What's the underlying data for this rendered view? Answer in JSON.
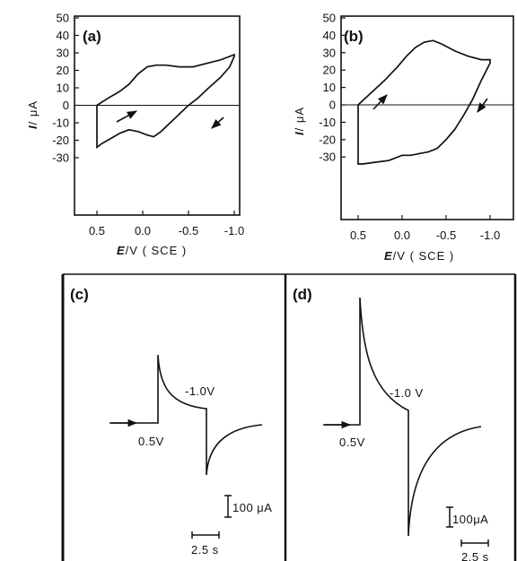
{
  "chart_data": [
    {
      "type": "line",
      "panel_label": "(a)",
      "xlabel": {
        "symbol": "E",
        "unit": "/V  ( SCE )"
      },
      "ylabel": {
        "symbol": "I",
        "unit": "/ μA"
      },
      "xlim": [
        0.5,
        -1.0
      ],
      "ylim": [
        -30,
        50
      ],
      "x_ticks": [
        "0.5",
        "0.0",
        "-0.5",
        "-1.0"
      ],
      "x_tick_values": [
        0.5,
        0.0,
        -0.5,
        -1.0
      ],
      "y_ticks": [
        "50",
        "40",
        "30",
        "20",
        "10",
        "0",
        "-10",
        "-20",
        "-30"
      ],
      "y_tick_values": [
        50,
        40,
        30,
        20,
        10,
        0,
        -10,
        -20,
        -30
      ],
      "series": [
        {
          "x": [
            0.5,
            0.38,
            0.25,
            0.15,
            0.05,
            -0.05,
            -0.15,
            -0.25,
            -0.4,
            -0.55,
            -0.7,
            -0.85,
            -0.95,
            -1.0,
            -1.0,
            -0.95,
            -0.85,
            -0.7,
            -0.6,
            -0.5,
            -0.4,
            -0.3,
            -0.2,
            -0.12,
            -0.05,
            0.05,
            0.15,
            0.25,
            0.35,
            0.45,
            0.5,
            0.5
          ],
          "y": [
            0,
            4,
            8,
            12,
            18,
            22,
            23,
            23,
            22,
            22,
            24,
            26,
            28,
            29,
            28,
            22,
            16,
            9,
            4,
            0,
            -5,
            -10,
            -15,
            -18,
            -17,
            -15,
            -14,
            -16,
            -19,
            -22,
            -24,
            0
          ]
        }
      ]
    },
    {
      "type": "line",
      "panel_label": "(b)",
      "xlabel": {
        "symbol": "E",
        "unit": "/V  ( SCE )"
      },
      "ylabel": {
        "symbol": "I",
        "unit": "/ μA"
      },
      "xlim": [
        0.5,
        -1.0
      ],
      "ylim": [
        -35,
        50
      ],
      "x_ticks": [
        "0.5",
        "0.0",
        "-0.5",
        "-1.0"
      ],
      "x_tick_values": [
        0.5,
        0.0,
        -0.5,
        -1.0
      ],
      "y_ticks": [
        "50",
        "40",
        "30",
        "20",
        "10",
        "0",
        "-10",
        "-20",
        "-30"
      ],
      "y_tick_values": [
        50,
        40,
        30,
        20,
        10,
        0,
        -10,
        -20,
        -30
      ],
      "series": [
        {
          "x": [
            0.5,
            0.35,
            0.2,
            0.05,
            -0.05,
            -0.15,
            -0.25,
            -0.35,
            -0.45,
            -0.6,
            -0.75,
            -0.9,
            -1.0,
            -1.0,
            -0.9,
            -0.8,
            -0.7,
            -0.6,
            -0.5,
            -0.4,
            -0.3,
            -0.2,
            -0.1,
            0.0,
            0.15,
            0.3,
            0.45,
            0.5,
            0.5
          ],
          "y": [
            0,
            7,
            14,
            22,
            28,
            33,
            36,
            37,
            35,
            31,
            28,
            26,
            26,
            24,
            14,
            3,
            -6,
            -14,
            -20,
            -25,
            -27,
            -28,
            -29,
            -29,
            -32,
            -33,
            -34,
            -34,
            0
          ]
        }
      ]
    },
    {
      "type": "line",
      "panel_label": "(c)",
      "step_labels": {
        "start": "0.5V",
        "step": "-1.0V"
      },
      "scale_current": "100 μA",
      "scale_time": "2.5 s"
    },
    {
      "type": "line",
      "panel_label": "(d)",
      "step_labels": {
        "start": "0.5V",
        "step": "-1.0 V"
      },
      "scale_current": "100μA",
      "scale_time": "2.5 s"
    }
  ]
}
